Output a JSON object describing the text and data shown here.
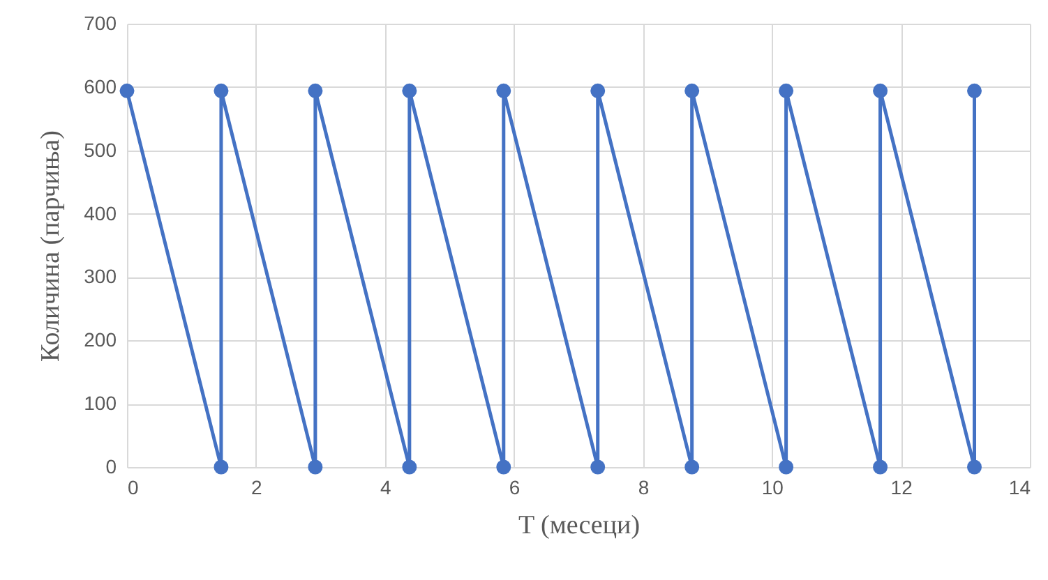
{
  "chart_data": {
    "type": "line",
    "xlabel": "T (месеци)",
    "ylabel": "Количина (парчиња)",
    "x": [
      0,
      1.46,
      1.46,
      2.92,
      2.92,
      4.38,
      4.38,
      5.84,
      5.84,
      7.3,
      7.3,
      8.76,
      8.76,
      10.22,
      10.22,
      11.68,
      11.68,
      13.14,
      13.14
    ],
    "series": [
      {
        "color": "#4472c4",
        "values": [
          594,
          0,
          594,
          0,
          594,
          0,
          594,
          0,
          594,
          0,
          594,
          0,
          594,
          0,
          594,
          0,
          594,
          0,
          594
        ]
      }
    ],
    "xlim": [
      0,
      14
    ],
    "xticks": [
      0,
      2,
      4,
      6,
      8,
      10,
      12,
      14
    ],
    "ylim": [
      0,
      700
    ],
    "yticks": [
      0,
      100,
      200,
      300,
      400,
      500,
      600,
      700
    ],
    "grid": true,
    "marker": "circle",
    "line_style": "solid"
  }
}
